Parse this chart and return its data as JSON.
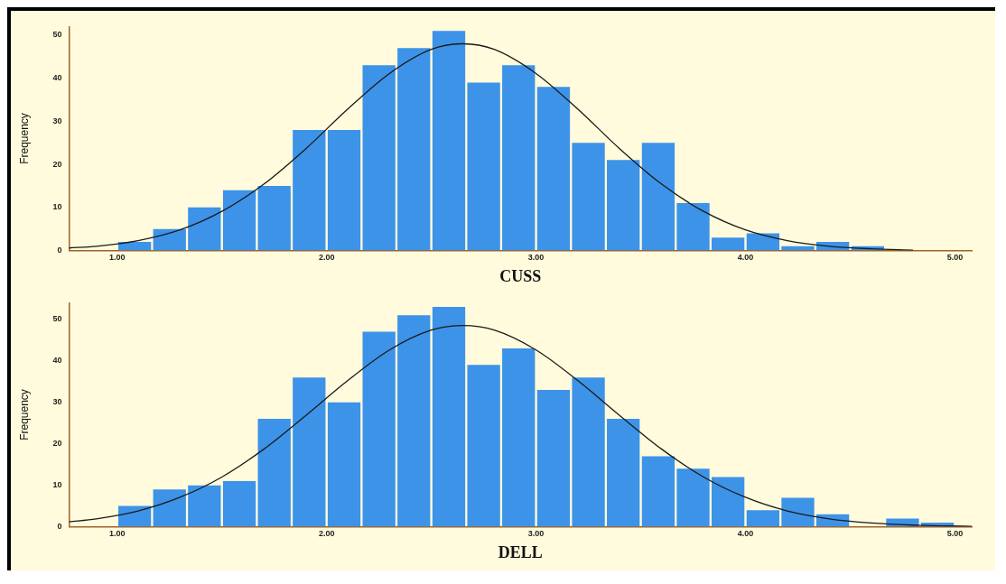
{
  "chart_data": [
    {
      "type": "histogram",
      "xlabel": "CUSS",
      "ylabel": "Frequency",
      "color": "#3d93e8",
      "bins": [
        1,
        1.167,
        1.333,
        1.5,
        1.667,
        1.833,
        2,
        2.167,
        2.333,
        2.5,
        2.667,
        2.833,
        3,
        3.167,
        3.333,
        3.5,
        3.667,
        3.833,
        4,
        4.167,
        4.333,
        4.5,
        4.667
      ],
      "values": [
        2,
        5,
        10,
        14,
        15,
        28,
        28,
        43,
        47,
        51,
        39,
        43,
        38,
        25,
        21,
        25,
        11,
        3,
        4,
        1,
        2,
        1
      ],
      "series": [
        {
          "type": "line",
          "color": "#1a1a1a",
          "x": [
            0.77,
            0.9,
            1.1,
            1.3,
            1.5,
            1.7,
            1.9,
            2.1,
            2.3,
            2.5,
            2.65,
            2.8,
            3.0,
            3.2,
            3.4,
            3.6,
            3.8,
            4.0,
            4.2,
            4.4,
            4.6,
            4.8
          ],
          "values": [
            0.6,
            1.0,
            2.3,
            4.8,
            9.1,
            15.4,
            23.6,
            32.8,
            41.1,
            46.7,
            48,
            46.7,
            41.1,
            32.8,
            23.6,
            15.4,
            9.1,
            4.8,
            2.3,
            1.0,
            0.4,
            0.1
          ]
        }
      ],
      "xlim": [
        0.77,
        5.08
      ],
      "xticks": [
        {
          "value": 1,
          "label": "1.00"
        },
        {
          "value": 2,
          "label": "2.00"
        },
        {
          "value": 3,
          "label": "3.00"
        },
        {
          "value": 4,
          "label": "4.00"
        },
        {
          "value": 5,
          "label": "5.00"
        }
      ],
      "ylim": [
        0,
        52
      ],
      "yticks": [
        0,
        10,
        20,
        30,
        40,
        50
      ],
      "grid": false,
      "legend": false
    },
    {
      "type": "histogram",
      "xlabel": "DELL",
      "ylabel": "Frequency",
      "color": "#3d93e8",
      "bins": [
        1,
        1.167,
        1.333,
        1.5,
        1.667,
        1.833,
        2,
        2.167,
        2.333,
        2.5,
        2.667,
        2.833,
        3,
        3.167,
        3.333,
        3.5,
        3.667,
        3.833,
        4,
        4.167,
        4.333,
        4.5,
        4.667,
        4.833,
        5
      ],
      "values": [
        5,
        9,
        10,
        11,
        26,
        36,
        30,
        47,
        51,
        53,
        39,
        43,
        33,
        36,
        26,
        17,
        14,
        12,
        4,
        7,
        3,
        0,
        2,
        1
      ],
      "series": [
        {
          "type": "line",
          "color": "#1a1a1a",
          "x": [
            0.77,
            0.9,
            1.1,
            1.3,
            1.5,
            1.7,
            1.9,
            2.1,
            2.3,
            2.5,
            2.65,
            2.8,
            3.0,
            3.2,
            3.4,
            3.6,
            3.8,
            4.0,
            4.2,
            4.4,
            4.6,
            4.8,
            5.08
          ],
          "values": [
            1.2,
            1.9,
            3.8,
            7.1,
            12.0,
            18.7,
            26.8,
            35.2,
            42.6,
            47.4,
            48.5,
            47.4,
            42.6,
            35.2,
            26.8,
            18.7,
            12.0,
            7.1,
            3.8,
            1.9,
            0.9,
            0.4,
            0.1
          ]
        }
      ],
      "xlim": [
        0.77,
        5.08
      ],
      "xticks": [
        {
          "value": 1,
          "label": "1.00"
        },
        {
          "value": 2,
          "label": "2.00"
        },
        {
          "value": 3,
          "label": "3.00"
        },
        {
          "value": 4,
          "label": "4.00"
        },
        {
          "value": 5,
          "label": "5.00"
        }
      ],
      "ylim": [
        0,
        54
      ],
      "yticks": [
        0,
        10,
        20,
        30,
        40,
        50
      ],
      "grid": false,
      "legend": false
    }
  ]
}
